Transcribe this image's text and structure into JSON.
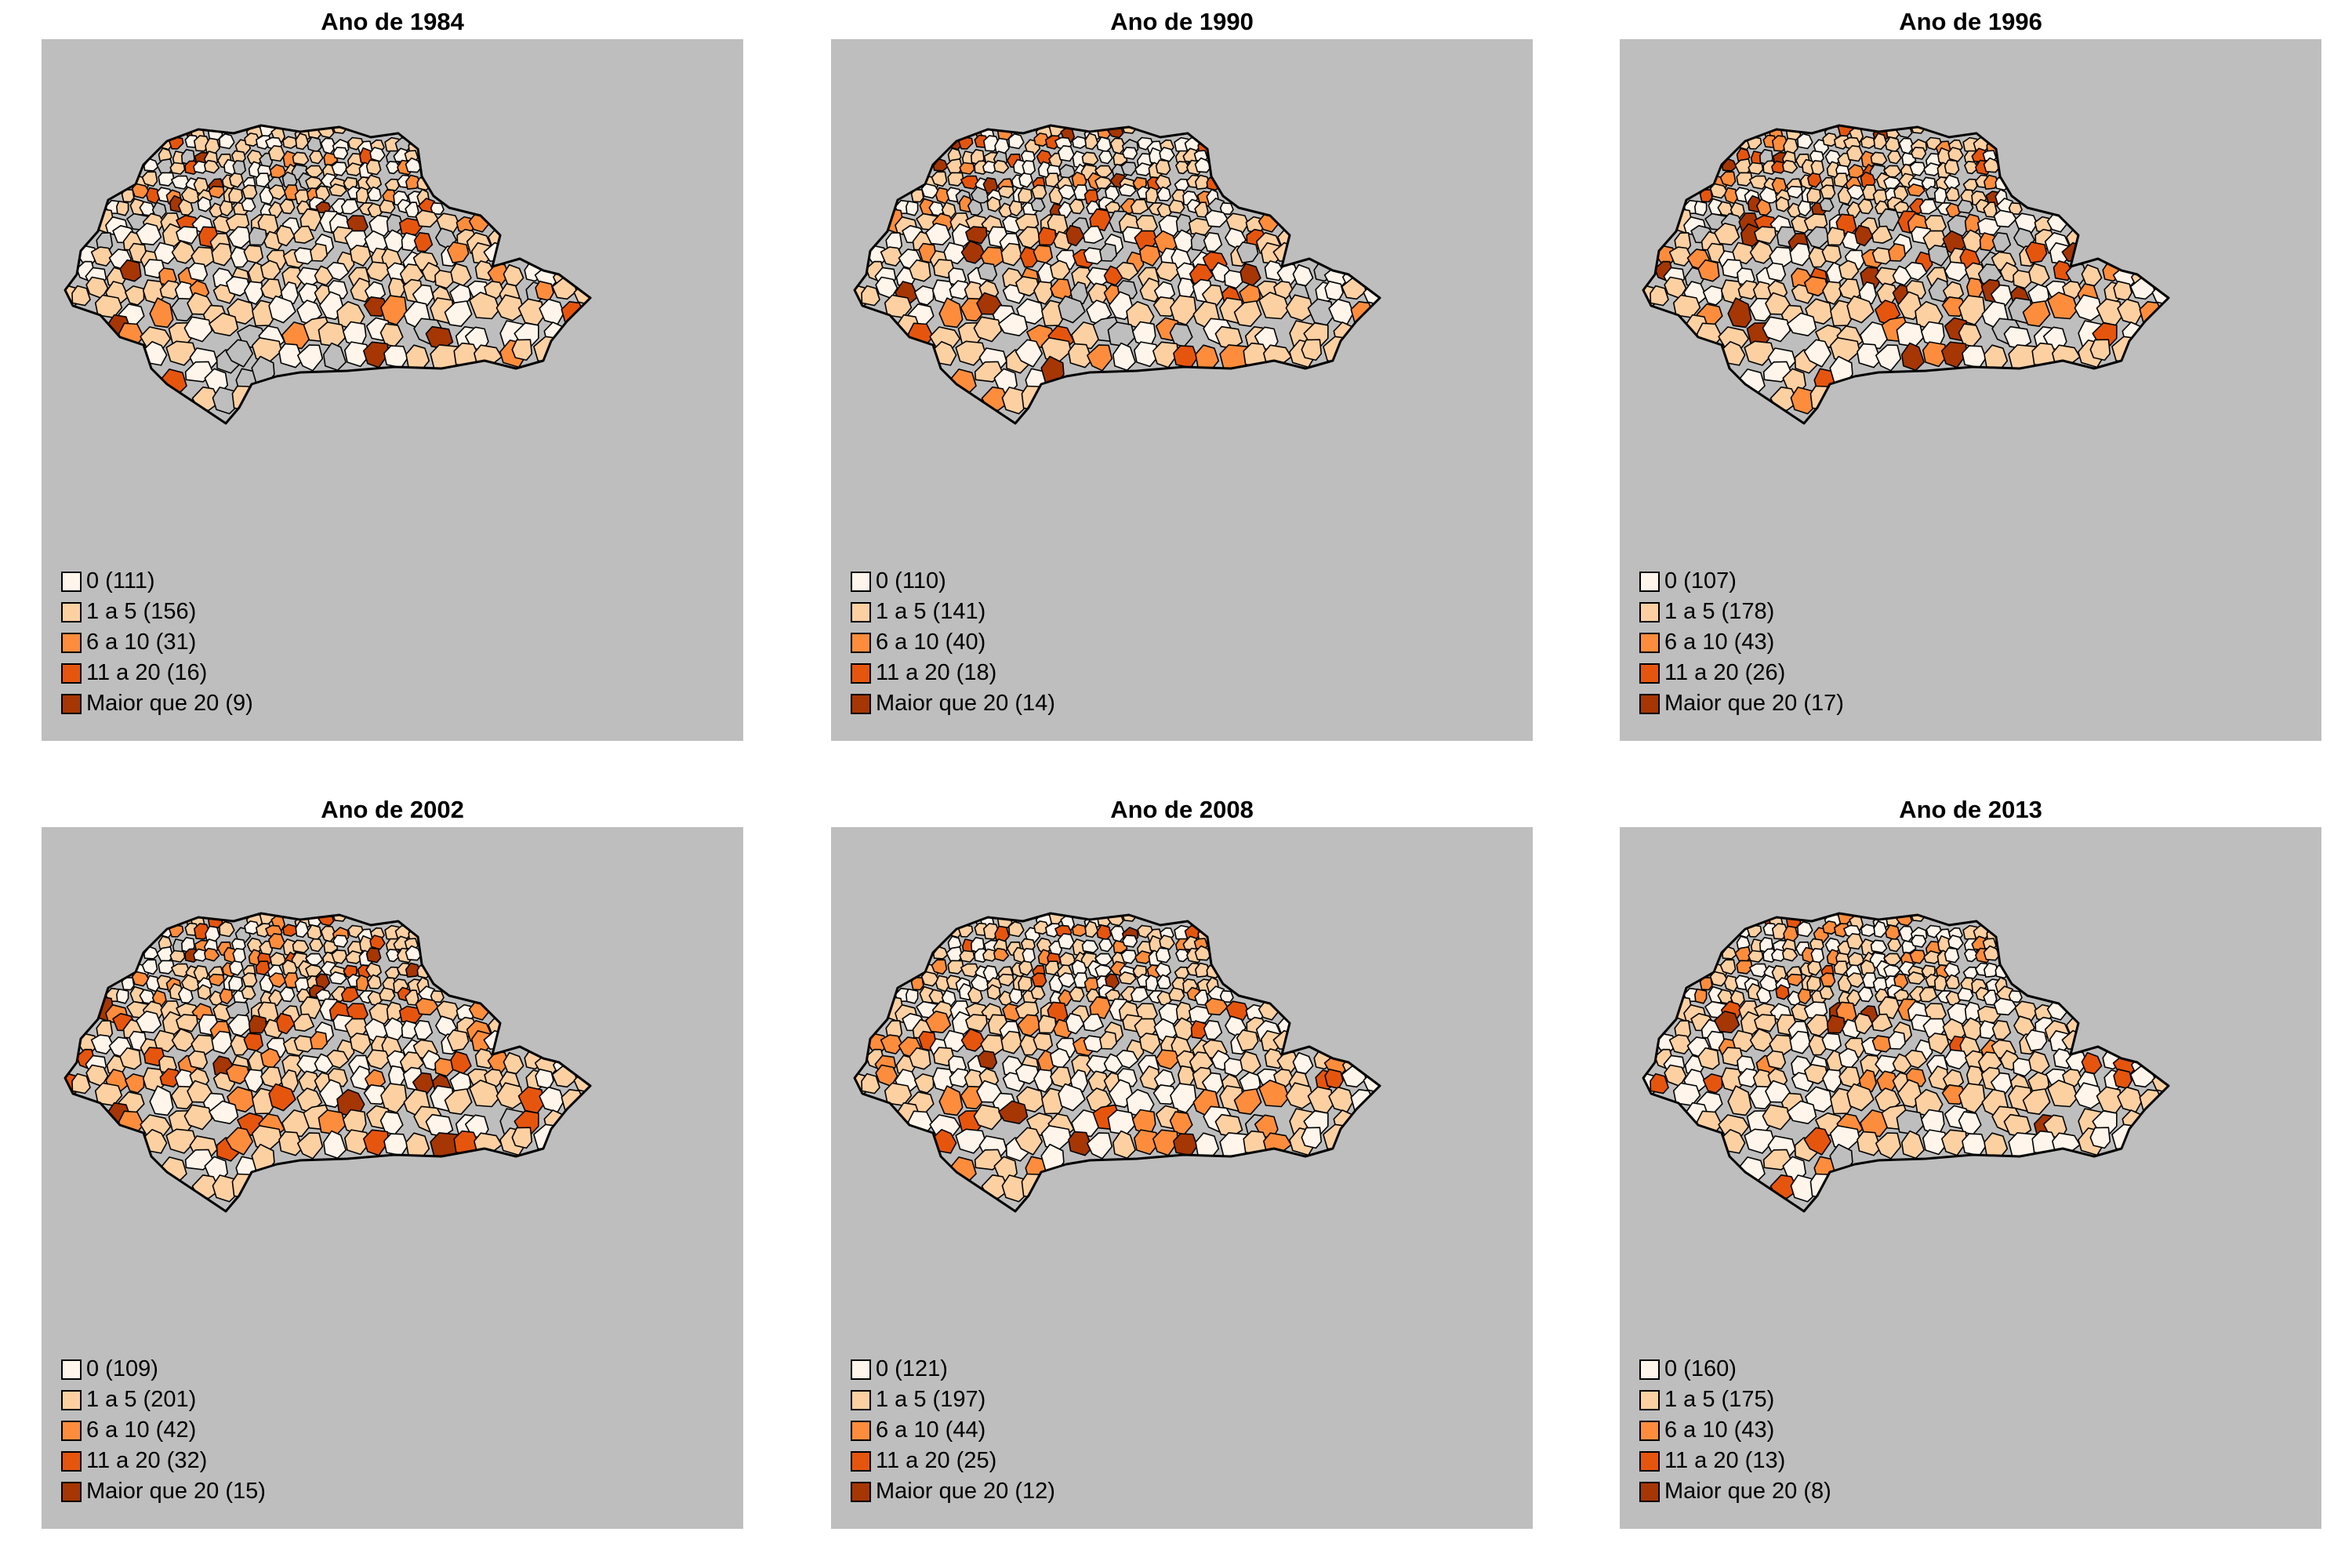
{
  "classes": [
    {
      "label": "0",
      "color": "#fff5eb"
    },
    {
      "label": "1 a 5",
      "color": "#fdd0a2"
    },
    {
      "label": "6 a 10",
      "color": "#fd8d3c"
    },
    {
      "label": "11 a 20",
      "color": "#e6550d"
    },
    {
      "label": "Maior que 20",
      "color": "#a63603"
    }
  ],
  "no_data_color": "#bebebe",
  "panels": [
    {
      "title": "Ano de 1984",
      "legend": [
        "0 (111)",
        "1 a 5 (156)",
        "6 a 10 (31)",
        "11 a 20 (16)",
        "Maior que 20 (9)"
      ],
      "counts": [
        111,
        156,
        31,
        16,
        9
      ]
    },
    {
      "title": "Ano de 1990",
      "legend": [
        "0 (110)",
        "1 a 5 (141)",
        "6 a 10 (40)",
        "11 a 20 (18)",
        "Maior que 20 (14)"
      ],
      "counts": [
        110,
        141,
        40,
        18,
        14
      ]
    },
    {
      "title": "Ano de 1996",
      "legend": [
        "0 (107)",
        "1 a 5 (178)",
        "6 a 10 (43)",
        "11 a 20 (26)",
        "Maior que 20 (17)"
      ],
      "counts": [
        107,
        178,
        43,
        26,
        17
      ]
    },
    {
      "title": "Ano de 2002",
      "legend": [
        "0 (109)",
        "1 a 5 (201)",
        "6 a 10 (42)",
        "11 a 20 (32)",
        "Maior que 20 (15)"
      ],
      "counts": [
        109,
        201,
        42,
        32,
        15
      ]
    },
    {
      "title": "Ano de 2008",
      "legend": [
        "0 (121)",
        "1 a 5 (197)",
        "6 a 10 (44)",
        "11 a 20 (25)",
        "Maior que 20 (12)"
      ],
      "counts": [
        121,
        197,
        44,
        25,
        12
      ]
    },
    {
      "title": "Ano de 2013",
      "legend": [
        "0 (160)",
        "1 a 5 (175)",
        "6 a 10 (43)",
        "11 a 20 (13)",
        "Maior que 20 (8)"
      ],
      "counts": [
        160,
        175,
        43,
        13,
        8
      ]
    }
  ]
}
